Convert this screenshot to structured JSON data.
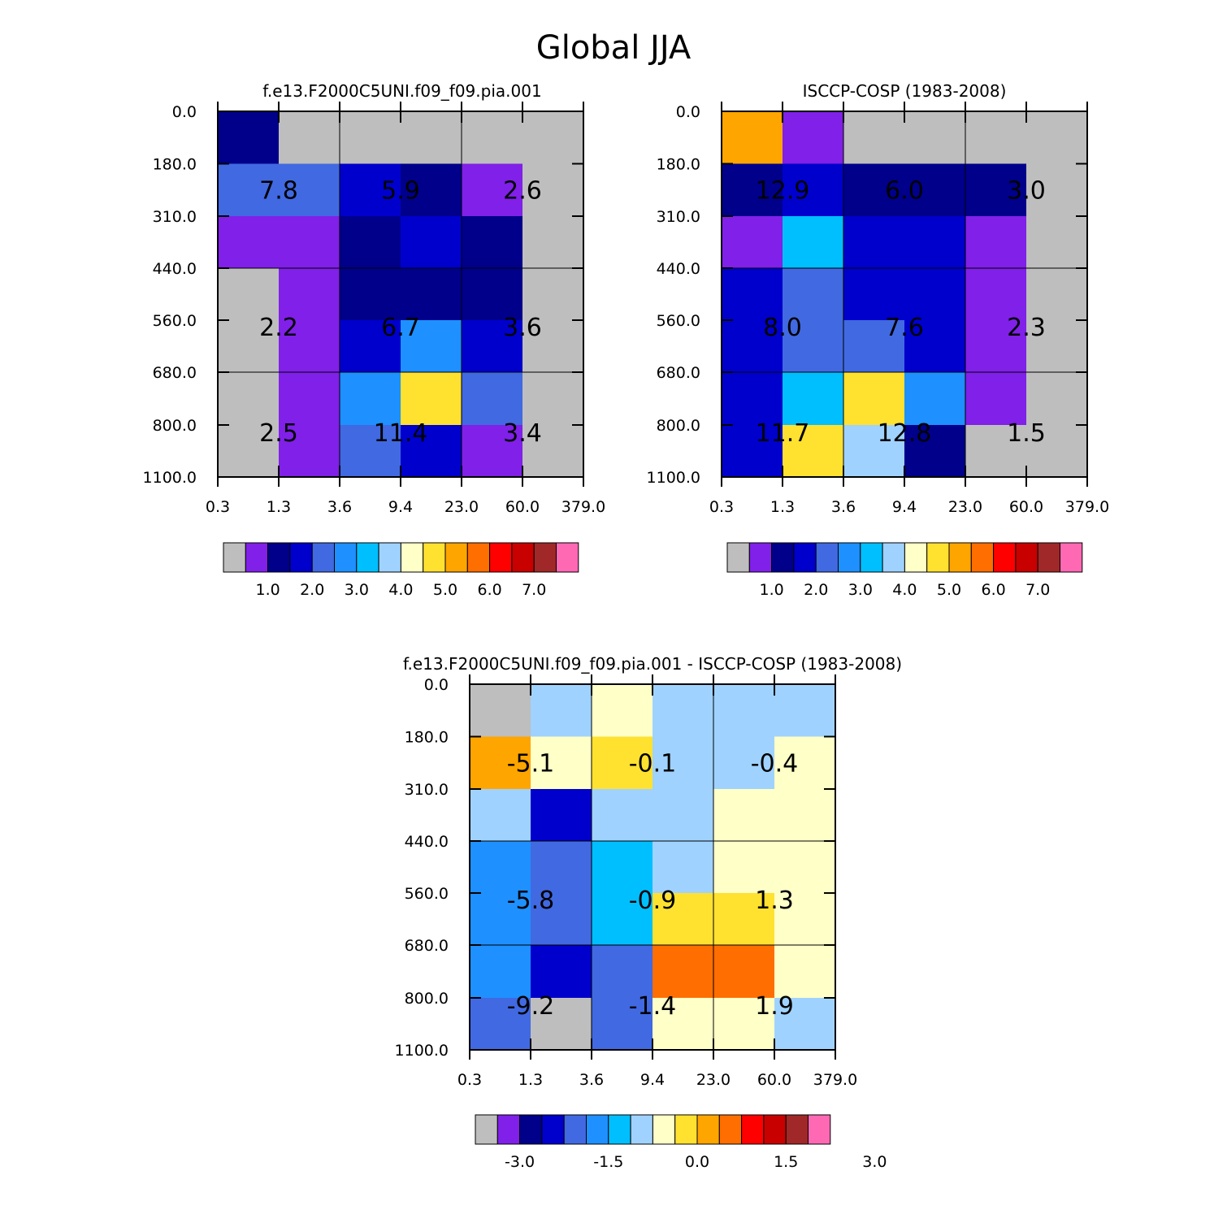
{
  "title": "Global JJA",
  "colors": {
    "palette": [
      "#bebebe",
      "#8020e8",
      "#00008b",
      "#0000cd",
      "#4169e1",
      "#1e90ff",
      "#00bfff",
      "#a0d2ff",
      "#ffffc8",
      "#ffe130",
      "#ffa500",
      "#ff6e00",
      "#ff0000",
      "#c80000",
      "#a02828",
      "#ff69b4"
    ]
  },
  "chart_data": [
    {
      "type": "heatmap",
      "title": "f.e13.F2000C5UNI.f09_f09.pia.001",
      "x_ticks": [
        "0.3",
        "1.3",
        "3.6",
        "9.4",
        "23.0",
        "60.0",
        "379.0"
      ],
      "y_ticks": [
        "0.0",
        "180.0",
        "310.0",
        "440.0",
        "560.0",
        "680.0",
        "800.0",
        "1100.0"
      ],
      "cell_color_index": [
        [
          2,
          0,
          0,
          0,
          0,
          0
        ],
        [
          4,
          4,
          3,
          2,
          1,
          0
        ],
        [
          1,
          1,
          2,
          3,
          2,
          0
        ],
        [
          0,
          1,
          2,
          2,
          2,
          0
        ],
        [
          0,
          1,
          3,
          5,
          3,
          0
        ],
        [
          0,
          1,
          5,
          9,
          4,
          0
        ],
        [
          0,
          1,
          4,
          3,
          1,
          0
        ]
      ],
      "group_labels": [
        [
          "7.8",
          "5.9",
          "2.6"
        ],
        [
          "2.2",
          "6.7",
          "3.6"
        ],
        [
          "2.5",
          "11.4",
          "3.4"
        ]
      ],
      "colorbar_labels": [
        "1.0",
        "2.0",
        "3.0",
        "4.0",
        "5.0",
        "6.0",
        "7.0"
      ]
    },
    {
      "type": "heatmap",
      "title": "ISCCP-COSP (1983-2008)",
      "x_ticks": [
        "0.3",
        "1.3",
        "3.6",
        "9.4",
        "23.0",
        "60.0",
        "379.0"
      ],
      "y_ticks": [
        "0.0",
        "180.0",
        "310.0",
        "440.0",
        "560.0",
        "680.0",
        "800.0",
        "1100.0"
      ],
      "cell_color_index": [
        [
          10,
          1,
          0,
          0,
          0,
          0
        ],
        [
          2,
          3,
          2,
          2,
          2,
          0
        ],
        [
          1,
          6,
          3,
          3,
          1,
          0
        ],
        [
          3,
          4,
          3,
          3,
          1,
          0
        ],
        [
          3,
          4,
          4,
          3,
          1,
          0
        ],
        [
          3,
          6,
          9,
          5,
          1,
          0
        ],
        [
          3,
          9,
          7,
          2,
          0,
          0
        ]
      ],
      "group_labels": [
        [
          "12.9",
          "6.0",
          "3.0"
        ],
        [
          "8.0",
          "7.6",
          "2.3"
        ],
        [
          "11.7",
          "12.8",
          "1.5"
        ]
      ],
      "colorbar_labels": [
        "1.0",
        "2.0",
        "3.0",
        "4.0",
        "5.0",
        "6.0",
        "7.0"
      ]
    },
    {
      "type": "heatmap",
      "title": "f.e13.F2000C5UNI.f09_f09.pia.001 - ISCCP-COSP (1983-2008)",
      "x_ticks": [
        "0.3",
        "1.3",
        "3.6",
        "9.4",
        "23.0",
        "60.0",
        "379.0"
      ],
      "y_ticks": [
        "0.0",
        "180.0",
        "310.0",
        "440.0",
        "560.0",
        "680.0",
        "800.0",
        "1100.0"
      ],
      "cell_color_index": [
        [
          0,
          7,
          8,
          7,
          7,
          7
        ],
        [
          10,
          8,
          9,
          7,
          7,
          8
        ],
        [
          7,
          3,
          7,
          7,
          8,
          8
        ],
        [
          5,
          4,
          6,
          7,
          8,
          8
        ],
        [
          5,
          4,
          6,
          9,
          9,
          8
        ],
        [
          5,
          3,
          4,
          11,
          11,
          8
        ],
        [
          4,
          0,
          4,
          8,
          8,
          7
        ]
      ],
      "group_labels": [
        [
          "-5.1",
          "-0.1",
          "-0.4"
        ],
        [
          "-5.8",
          "-0.9",
          "1.3"
        ],
        [
          "-9.2",
          "-1.4",
          "1.9"
        ]
      ],
      "colorbar_labels": [
        "-3.0",
        "-1.5",
        "0.0",
        "1.5",
        "3.0"
      ]
    }
  ]
}
